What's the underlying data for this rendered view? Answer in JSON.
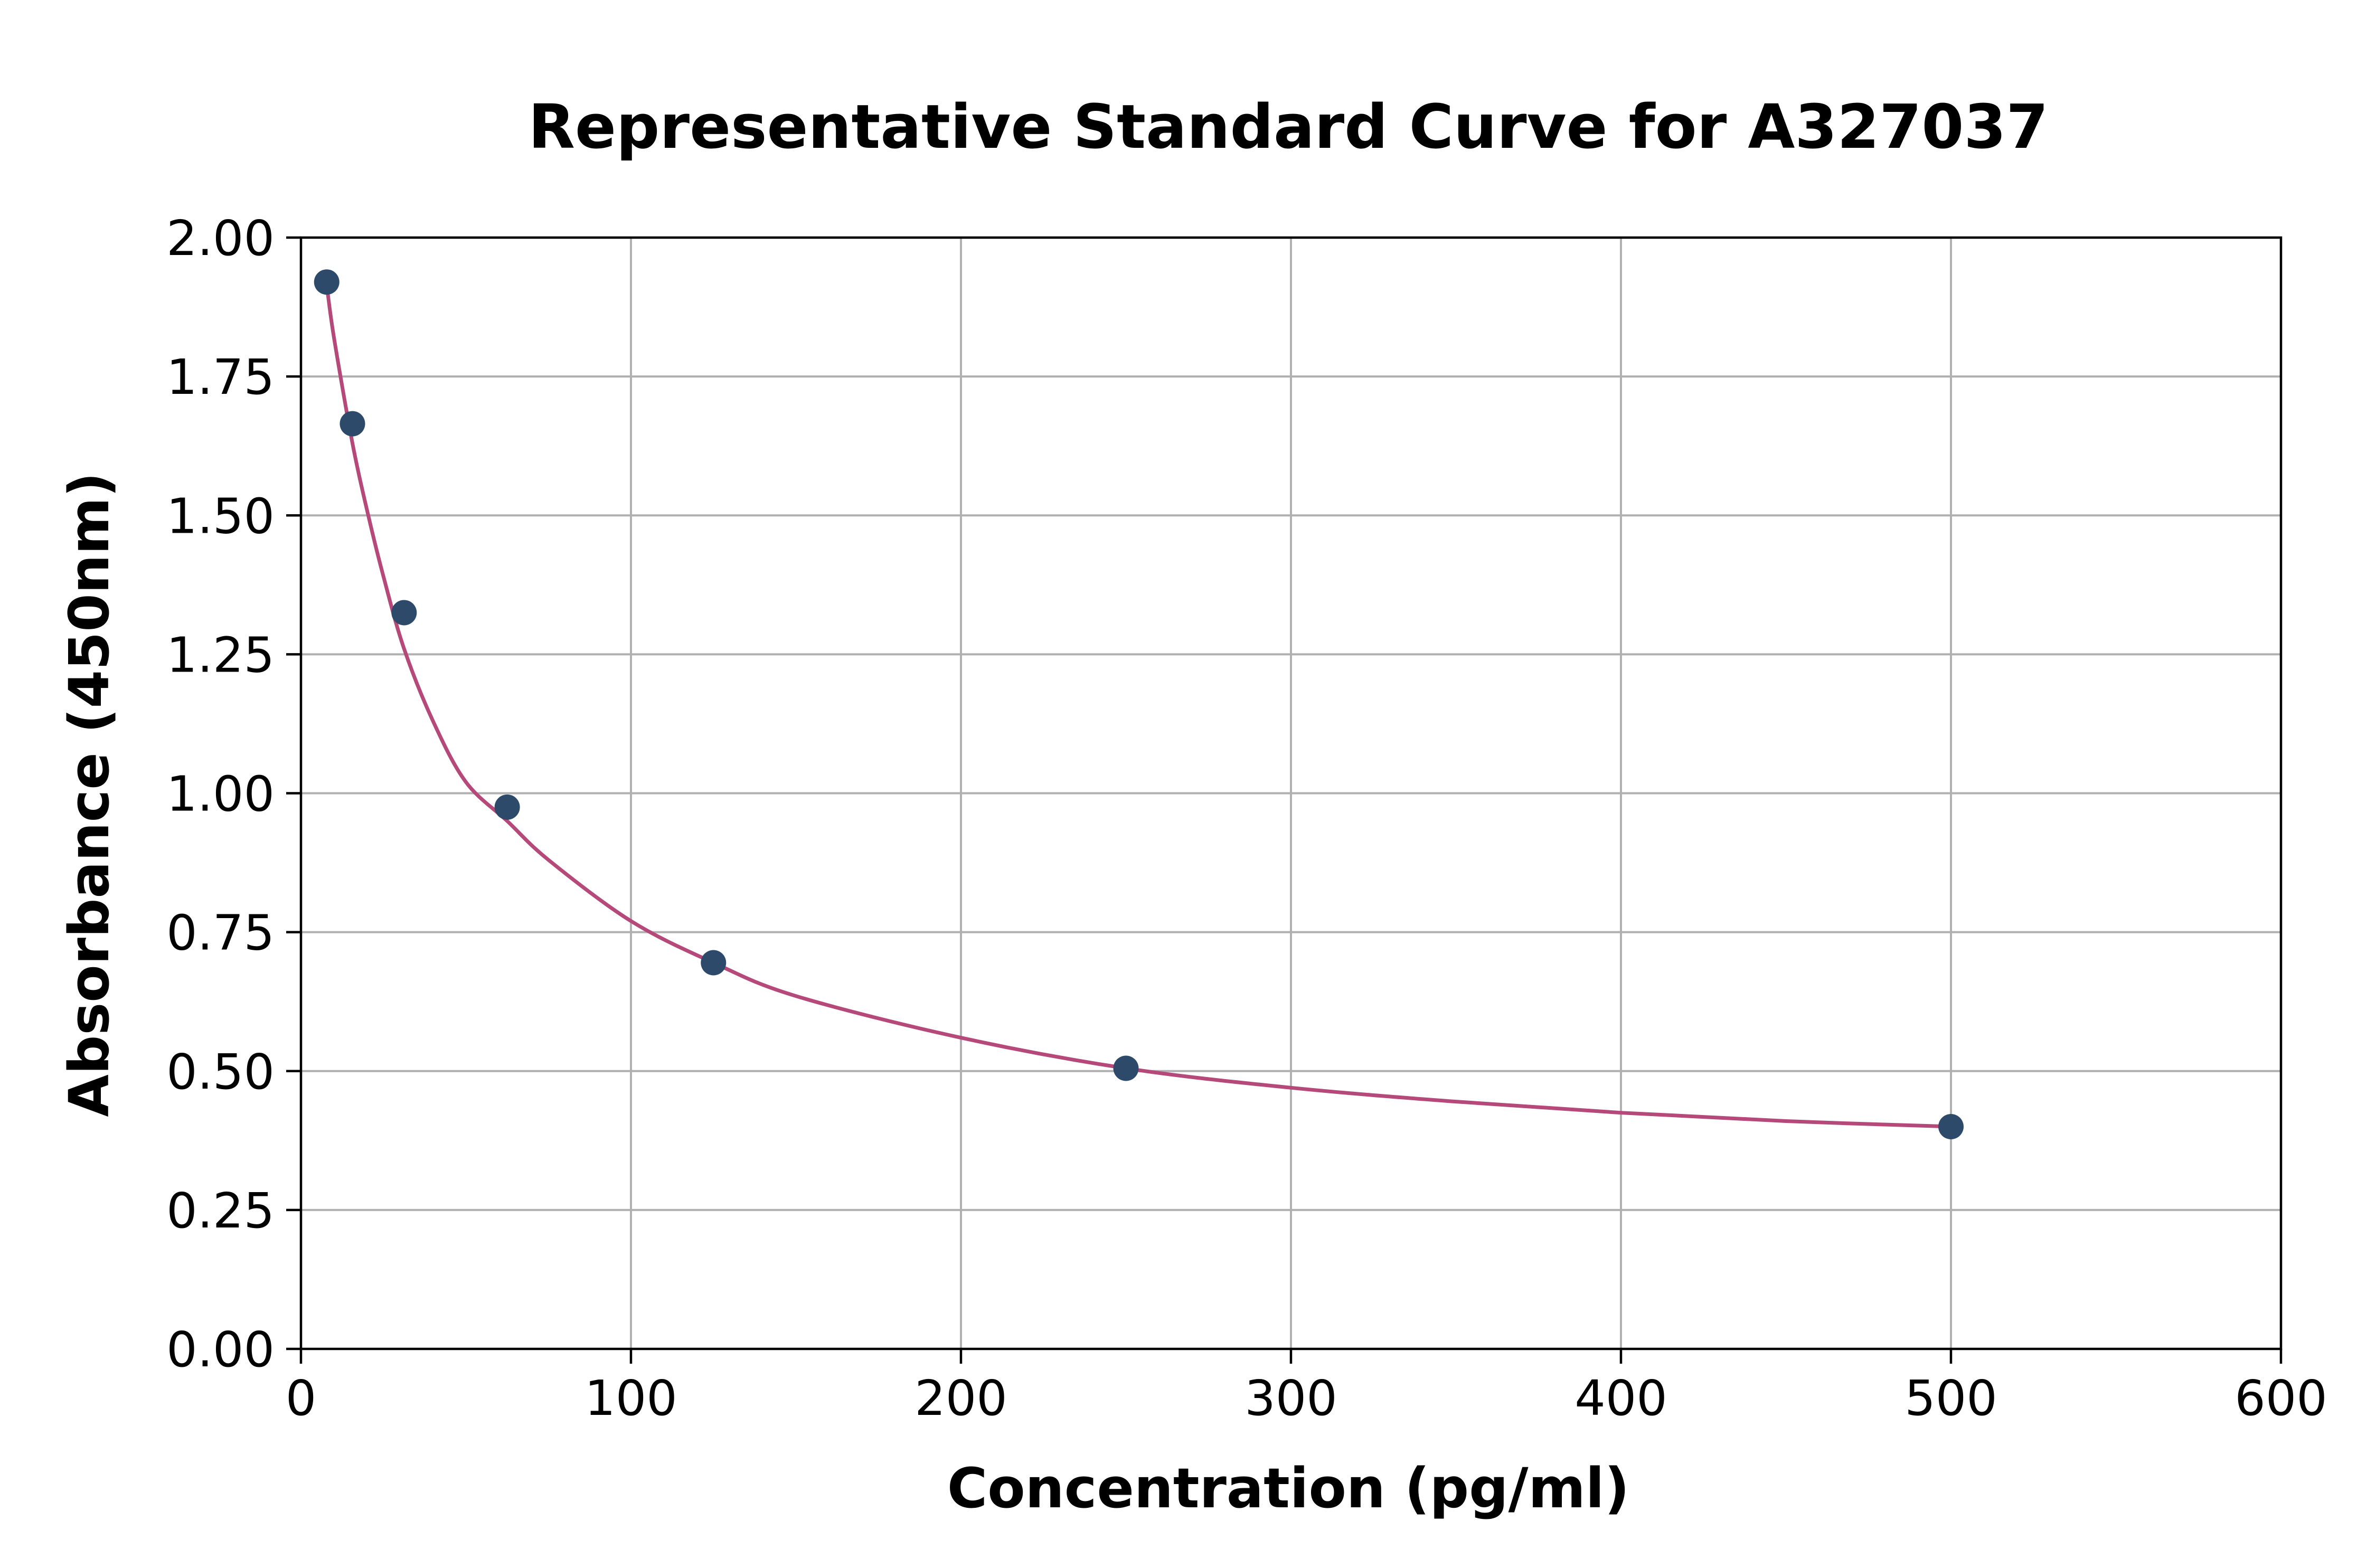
{
  "chart_data": {
    "type": "scatter",
    "title": "Representative Standard Curve for A327037",
    "xlabel": "Concentration (pg/ml)",
    "ylabel": "Absorbance (450nm)",
    "xlim": [
      0,
      600
    ],
    "ylim": [
      0,
      2.0
    ],
    "xticks": [
      "0",
      "100",
      "200",
      "300",
      "400",
      "500",
      "600"
    ],
    "yticks": [
      "0.00",
      "0.25",
      "0.50",
      "0.75",
      "1.00",
      "1.25",
      "1.50",
      "1.75",
      "2.00"
    ],
    "grid": true,
    "colors": {
      "points": "#2e4a6b",
      "curve": "#b5497a"
    },
    "points": {
      "x": [
        7.8,
        15.6,
        31.25,
        62.5,
        125,
        250,
        500
      ],
      "y": [
        1.92,
        1.665,
        1.325,
        0.975,
        0.695,
        0.505,
        0.4
      ]
    },
    "curve": {
      "x": [
        7.8,
        10,
        15.6,
        20,
        25,
        31.25,
        40,
        50,
        62.5,
        75,
        100,
        125,
        150,
        200,
        250,
        300,
        350,
        400,
        450,
        500
      ],
      "y": [
        1.915,
        1.82,
        1.63,
        1.51,
        1.39,
        1.26,
        1.13,
        1.02,
        0.95,
        0.88,
        0.77,
        0.695,
        0.635,
        0.56,
        0.505,
        0.47,
        0.445,
        0.425,
        0.41,
        0.4
      ]
    }
  }
}
